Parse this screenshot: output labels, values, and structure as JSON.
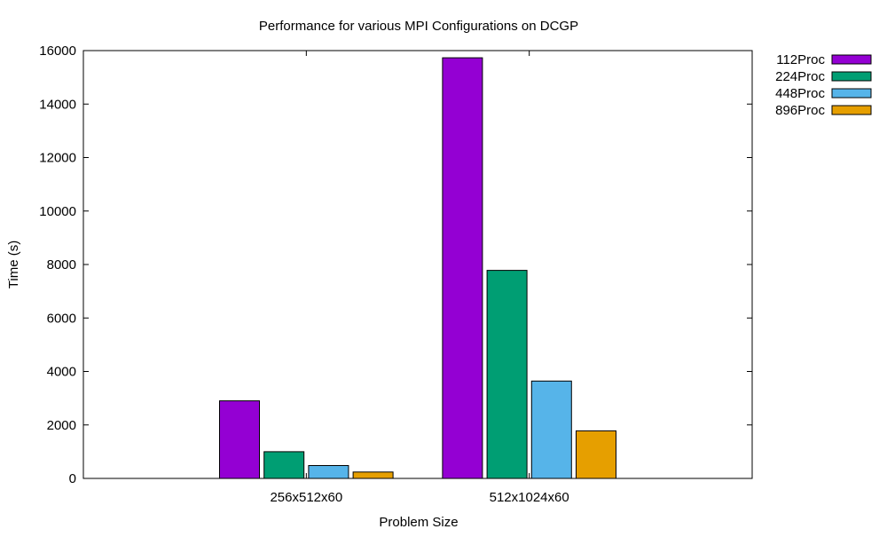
{
  "chart_data": {
    "type": "bar",
    "title": "Performance for various MPI Configurations on DCGP",
    "xlabel": "Problem Size",
    "ylabel": "Time (s)",
    "categories": [
      "256x512x60",
      "512x1024x60"
    ],
    "ylim": [
      0,
      16000
    ],
    "yticks": [
      0,
      2000,
      4000,
      6000,
      8000,
      10000,
      12000,
      14000,
      16000
    ],
    "grid": false,
    "legend_position": "outside-top-right",
    "series": [
      {
        "name": "112Proc",
        "color": "#9400d3",
        "values": [
          2900,
          15730
        ]
      },
      {
        "name": "224Proc",
        "color": "#009e73",
        "values": [
          1000,
          7780
        ]
      },
      {
        "name": "448Proc",
        "color": "#56b4e9",
        "values": [
          480,
          3640
        ]
      },
      {
        "name": "896Proc",
        "color": "#e69f00",
        "values": [
          240,
          1780
        ]
      }
    ]
  }
}
